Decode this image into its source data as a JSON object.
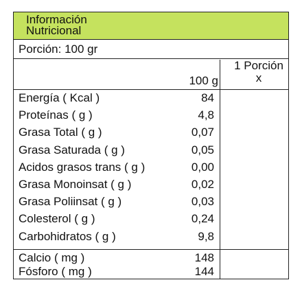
{
  "header": {
    "title_line1": "Información",
    "title_line2": "Nutricional"
  },
  "portion": "Porción: 100 gr",
  "columns": {
    "col1": "100 g",
    "col2_line1": "1 Porción",
    "col2_line2": "x"
  },
  "rows": [
    {
      "label": "Energía ( Kcal )",
      "value": "84"
    },
    {
      "label": "Proteínas ( g )",
      "value": "4,8"
    },
    {
      "label": "Grasa Total ( g )",
      "value": "0,07"
    },
    {
      "label": "Grasa Saturada ( g )",
      "value": "0,05"
    },
    {
      "label": "Acidos grasos trans ( g )",
      "value": "0,00"
    },
    {
      "label": "Grasa Monoinsat ( g )",
      "value": "0,02"
    },
    {
      "label": "Grasa Poliinsat ( g )",
      "value": "0,03"
    },
    {
      "label": "Colesterol ( g )",
      "value": "0,24"
    },
    {
      "label": "Carbohidratos ( g )",
      "value": "9,8"
    }
  ],
  "minerals": [
    {
      "label": "Calcio ( mg )",
      "value": "148"
    },
    {
      "label": "Fósforo ( mg )",
      "value": "144"
    }
  ],
  "colors": {
    "header_bg": "#c5e25e",
    "border": "#222222"
  }
}
